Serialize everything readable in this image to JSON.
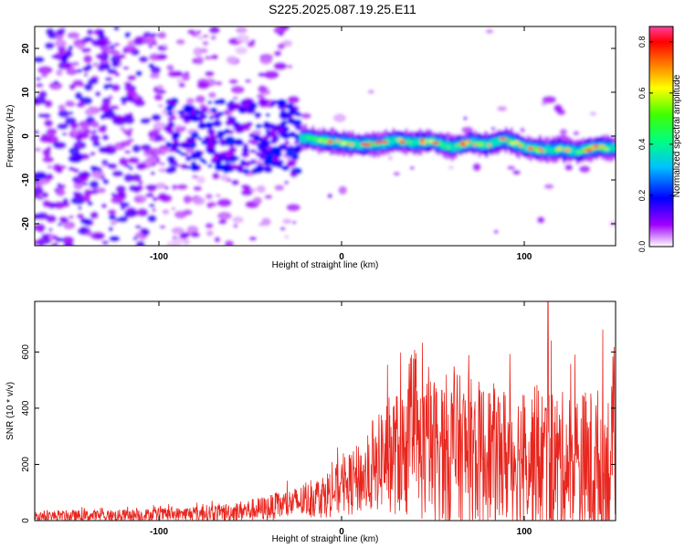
{
  "figure": {
    "title": "S225.2025.087.19.25.E11"
  },
  "chart_data": [
    {
      "type": "heatmap",
      "xlabel": "Height of straight line (km)",
      "ylabel": "Frequency (Hz)",
      "xlim": [
        -168,
        150
      ],
      "ylim": [
        -25,
        25
      ],
      "x_ticks": [
        -100,
        0,
        100
      ],
      "y_ticks": [
        -20,
        -10,
        0,
        10,
        20
      ],
      "colorbar": {
        "label": "Normalized spectral amplitude",
        "range": [
          0,
          0.86
        ],
        "ticks": [
          "0.0",
          "0.2",
          "0.4",
          "0.6",
          "0.8"
        ]
      },
      "ridge_centerline": {
        "x": [
          -20,
          -10,
          0,
          10,
          20,
          30,
          40,
          50,
          60,
          70,
          80,
          90,
          100,
          110,
          120,
          130,
          140,
          148
        ],
        "y": [
          -0.5,
          -1.0,
          -1.5,
          -2.0,
          -1.8,
          -1.0,
          -1.5,
          -1.2,
          -2.5,
          -1.5,
          -2.0,
          -0.8,
          -2.5,
          -3.2,
          -3.0,
          -3.5,
          -2.5,
          -2.8
        ]
      },
      "grid": false,
      "legend": "none"
    },
    {
      "type": "line",
      "xlabel": "Height of straight line (km)",
      "ylabel": "SNR (10 * v/v)",
      "xlim": [
        -168,
        150
      ],
      "ylim": [
        0,
        780
      ],
      "x_ticks": [
        -100,
        0,
        100
      ],
      "y_ticks": [
        0,
        200,
        400,
        600
      ],
      "series": [
        {
          "color": "#e8261e",
          "envelope": {
            "x": [
              -168,
              -120,
              -90,
              -60,
              -40,
              -20,
              -10,
              0,
              10,
              17,
              22,
              40,
              60,
              80,
              100,
              115,
              120,
              140,
              150
            ],
            "base": [
              15,
              18,
              22,
              30,
              45,
              70,
              90,
              115,
              150,
              150,
              230,
              250,
              250,
              230,
              230,
              210,
              200,
              180,
              200
            ],
            "amp": [
              20,
              22,
              25,
              35,
              45,
              60,
              80,
              100,
              130,
              120,
              200,
              250,
              280,
              260,
              250,
              270,
              260,
              300,
              290
            ]
          }
        }
      ],
      "annotations": [
        {
          "x": 17,
          "y": 355
        },
        {
          "x": 113,
          "y": 780
        },
        {
          "x": 143,
          "y": 680
        }
      ],
      "grid": false,
      "legend": "none"
    }
  ]
}
